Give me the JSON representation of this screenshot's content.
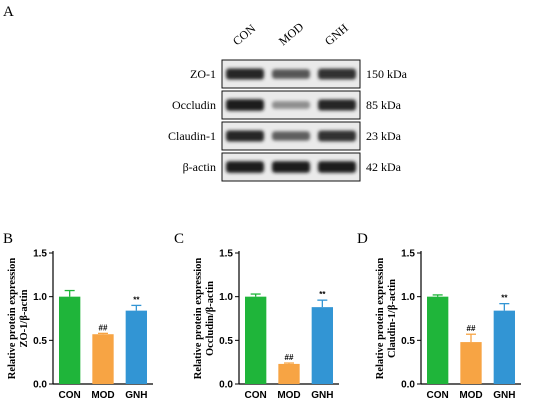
{
  "panel_a": {
    "letter": "A",
    "lanes": [
      "CON",
      "MOD",
      "GNH"
    ],
    "rows": [
      {
        "protein": "ZO-1",
        "size": "150 kDa",
        "intensity": [
          0.85,
          0.6,
          0.8
        ]
      },
      {
        "protein": "Occludin",
        "size": "85 kDa",
        "intensity": [
          0.9,
          0.3,
          0.85
        ]
      },
      {
        "protein": "Claudin-1",
        "size": "23 kDa",
        "intensity": [
          0.85,
          0.55,
          0.8
        ]
      },
      {
        "protein": "β-actin",
        "size": "42 kDa",
        "intensity": [
          0.9,
          0.9,
          0.9
        ]
      }
    ]
  },
  "chart_data": [
    {
      "type": "bar",
      "letter": "B",
      "ylabel_line1": "Relative protein expression",
      "ylabel_line2": "ZO-1/β-actin",
      "categories": [
        "CON",
        "MOD",
        "GNH"
      ],
      "values": [
        1.0,
        0.57,
        0.84
      ],
      "errors": [
        0.07,
        0.01,
        0.06
      ],
      "annotations": [
        "",
        "##",
        "**"
      ],
      "colors": [
        "#1fb53a",
        "#f7a444",
        "#3295d4"
      ],
      "ylim": [
        0,
        1.5
      ],
      "yticks": [
        "0.0",
        "0.5",
        "1.0",
        "1.5"
      ]
    },
    {
      "type": "bar",
      "letter": "C",
      "ylabel_line1": "Relative protein expression",
      "ylabel_line2": "Occludin/β-actin",
      "categories": [
        "CON",
        "MOD",
        "GNH"
      ],
      "values": [
        1.0,
        0.23,
        0.88
      ],
      "errors": [
        0.03,
        0.01,
        0.08
      ],
      "annotations": [
        "",
        "##",
        "**"
      ],
      "colors": [
        "#1fb53a",
        "#f7a444",
        "#3295d4"
      ],
      "ylim": [
        0,
        1.5
      ],
      "yticks": [
        "0.0",
        "0.5",
        "1.0",
        "1.5"
      ]
    },
    {
      "type": "bar",
      "letter": "D",
      "ylabel_line1": "Relative protein expression",
      "ylabel_line2": "Claudin-1/β-actin",
      "categories": [
        "CON",
        "MOD",
        "GNH"
      ],
      "values": [
        1.0,
        0.48,
        0.84
      ],
      "errors": [
        0.02,
        0.09,
        0.08
      ],
      "annotations": [
        "",
        "##",
        "**"
      ],
      "colors": [
        "#1fb53a",
        "#f7a444",
        "#3295d4"
      ],
      "ylim": [
        0,
        1.5
      ],
      "yticks": [
        "0.0",
        "0.5",
        "1.0",
        "1.5"
      ]
    }
  ]
}
